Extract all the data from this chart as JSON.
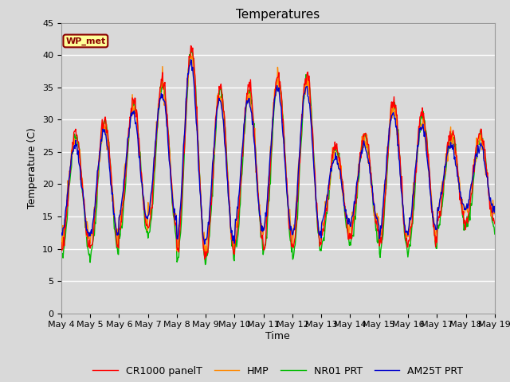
{
  "title": "Temperatures",
  "ylabel": "Temperature (C)",
  "xlabel": "Time",
  "ylim": [
    0,
    45
  ],
  "yticks": [
    0,
    5,
    10,
    15,
    20,
    25,
    30,
    35,
    40,
    45
  ],
  "x_start_day": 4,
  "x_end_day": 19,
  "x_tick_days": [
    4,
    5,
    6,
    7,
    8,
    9,
    10,
    11,
    12,
    13,
    14,
    15,
    16,
    17,
    18,
    19
  ],
  "series_colors": [
    "#ff0000",
    "#ff8800",
    "#00bb00",
    "#0000cc"
  ],
  "series_labels": [
    "CR1000 panelT",
    "HMP",
    "NR01 PRT",
    "AM25T PRT"
  ],
  "line_width": 1.0,
  "bg_color": "#d9d9d9",
  "plot_bg_color": "#d9d9d9",
  "grid_color": "#ffffff",
  "grid_linewidth": 1.0,
  "annotation_text": "WP_met",
  "annotation_bg": "#ffff99",
  "annotation_border": "#8b0000",
  "title_fontsize": 11,
  "axis_fontsize": 9,
  "tick_fontsize": 8,
  "legend_fontsize": 9,
  "points_per_day": 48,
  "day_peaks": [
    28,
    30,
    33,
    36,
    41,
    35,
    35,
    37,
    37,
    26,
    28,
    33,
    31,
    28,
    28
  ],
  "day_mins": [
    10,
    10,
    13,
    13,
    9,
    9,
    11,
    11,
    10,
    12,
    12,
    10,
    11,
    14,
    14
  ]
}
